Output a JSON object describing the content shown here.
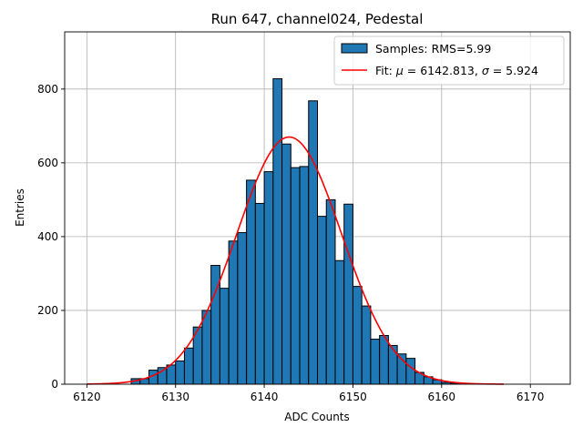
{
  "chart_data": {
    "type": "bar",
    "title": "Run 647, channel024, Pedestal",
    "xlabel": "ADC Counts",
    "ylabel": "Entries",
    "xlim": [
      6117.5,
      6174.5
    ],
    "ylim": [
      0,
      955
    ],
    "xticks": [
      6120,
      6130,
      6140,
      6150,
      6160,
      6170
    ],
    "yticks": [
      0,
      200,
      400,
      600,
      800
    ],
    "grid": true,
    "legend_position": "upper-right",
    "histogram": {
      "name": "Samples: RMS=5.99",
      "color": "#1f77b4",
      "edgecolor": "#000000",
      "bins": [
        {
          "x0": 6125.0,
          "x1": 6126.0,
          "count": 15
        },
        {
          "x0": 6126.0,
          "x1": 6127.0,
          "count": 15
        },
        {
          "x0": 6127.0,
          "x1": 6128.0,
          "count": 38
        },
        {
          "x0": 6128.0,
          "x1": 6129.0,
          "count": 45
        },
        {
          "x0": 6129.0,
          "x1": 6130.0,
          "count": 52
        },
        {
          "x0": 6130.0,
          "x1": 6131.0,
          "count": 63
        },
        {
          "x0": 6131.0,
          "x1": 6132.0,
          "count": 98
        },
        {
          "x0": 6132.0,
          "x1": 6133.0,
          "count": 155
        },
        {
          "x0": 6133.0,
          "x1": 6134.0,
          "count": 200
        },
        {
          "x0": 6134.0,
          "x1": 6135.0,
          "count": 322
        },
        {
          "x0": 6135.0,
          "x1": 6136.0,
          "count": 260
        },
        {
          "x0": 6136.0,
          "x1": 6137.0,
          "count": 388
        },
        {
          "x0": 6137.0,
          "x1": 6138.0,
          "count": 411
        },
        {
          "x0": 6138.0,
          "x1": 6139.0,
          "count": 553
        },
        {
          "x0": 6139.0,
          "x1": 6140.0,
          "count": 490
        },
        {
          "x0": 6140.0,
          "x1": 6141.0,
          "count": 576
        },
        {
          "x0": 6141.0,
          "x1": 6142.0,
          "count": 828
        },
        {
          "x0": 6142.0,
          "x1": 6143.0,
          "count": 651
        },
        {
          "x0": 6143.0,
          "x1": 6144.0,
          "count": 587
        },
        {
          "x0": 6144.0,
          "x1": 6145.0,
          "count": 590
        },
        {
          "x0": 6145.0,
          "x1": 6146.0,
          "count": 768
        },
        {
          "x0": 6146.0,
          "x1": 6147.0,
          "count": 455
        },
        {
          "x0": 6147.0,
          "x1": 6148.0,
          "count": 500
        },
        {
          "x0": 6148.0,
          "x1": 6149.0,
          "count": 335
        },
        {
          "x0": 6149.0,
          "x1": 6150.0,
          "count": 488
        },
        {
          "x0": 6150.0,
          "x1": 6151.0,
          "count": 265
        },
        {
          "x0": 6151.0,
          "x1": 6152.0,
          "count": 212
        },
        {
          "x0": 6152.0,
          "x1": 6153.0,
          "count": 122
        },
        {
          "x0": 6153.0,
          "x1": 6154.0,
          "count": 132
        },
        {
          "x0": 6154.0,
          "x1": 6155.0,
          "count": 105
        },
        {
          "x0": 6155.0,
          "x1": 6156.0,
          "count": 82
        },
        {
          "x0": 6156.0,
          "x1": 6157.0,
          "count": 70
        },
        {
          "x0": 6157.0,
          "x1": 6158.0,
          "count": 32
        },
        {
          "x0": 6158.0,
          "x1": 6159.0,
          "count": 20
        },
        {
          "x0": 6159.0,
          "x1": 6160.0,
          "count": 12
        },
        {
          "x0": 6160.0,
          "x1": 6161.0,
          "count": 5
        },
        {
          "x0": 6161.0,
          "x1": 6162.0,
          "count": 3
        }
      ]
    },
    "fit": {
      "name": "Fit: μ = 6142.813, σ = 5.924",
      "legend_prefix": "Fit: ",
      "legend_mu": "μ",
      "legend_eq_mu": " = 6142.813, ",
      "legend_sigma": "σ",
      "legend_eq_sigma": " = 5.924",
      "color": "#ff0000",
      "mu": 6142.813,
      "sigma": 5.924,
      "amplitude": 670,
      "x_range": [
        6120,
        6167
      ]
    },
    "colors": {
      "grid": "#b0b0b0",
      "axes": "#000000",
      "legend_border": "#cccccc"
    }
  }
}
